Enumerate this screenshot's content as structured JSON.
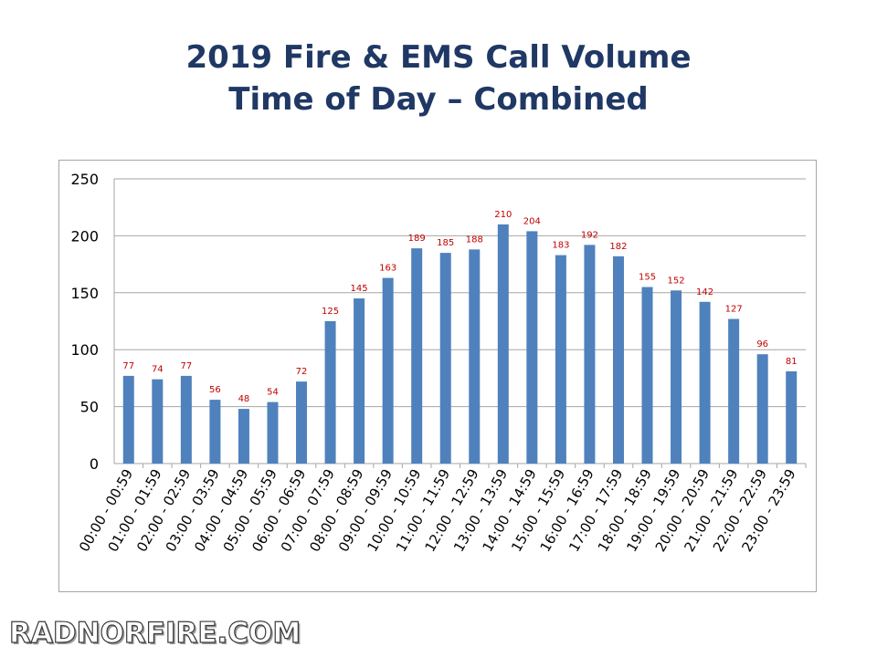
{
  "slide": {
    "title_line1": "2019 Fire & EMS Call Volume",
    "title_line2": "Time of Day – Combined",
    "watermark": "RADNORFIRE.COM"
  },
  "colors": {
    "title": "#1f3864",
    "bar": "#4f81bd",
    "data_label": "#c00000",
    "grid": "#a6a6a6",
    "axis_text": "#000000"
  },
  "chart_data": {
    "type": "bar",
    "title": "",
    "xlabel": "",
    "ylabel": "",
    "ylim": [
      0,
      250
    ],
    "yticks": [
      0,
      50,
      100,
      150,
      200,
      250
    ],
    "grid": true,
    "legend": "none",
    "categories": [
      "00:00 - 00:59",
      "01:00 - 01:59",
      "02:00 - 02:59",
      "03:00 - 03:59",
      "04:00 - 04:59",
      "05:00 - 05:59",
      "06:00 - 06:59",
      "07:00 - 07:59",
      "08:00 - 08:59",
      "09:00 - 09:59",
      "10:00 - 10:59",
      "11:00 - 11:59",
      "12:00 - 12:59",
      "13:00 - 13:59",
      "14:00 - 14:59",
      "15:00 - 15:59",
      "16:00 - 16:59",
      "17:00 - 17:59",
      "18:00 - 18:59",
      "19:00 - 19:59",
      "20:00 - 20:59",
      "21:00 - 21:59",
      "22:00 - 22:59",
      "23:00 - 23:59"
    ],
    "values": [
      77,
      74,
      77,
      56,
      48,
      54,
      72,
      125,
      145,
      163,
      189,
      185,
      188,
      210,
      204,
      183,
      192,
      182,
      155,
      152,
      142,
      127,
      96,
      81
    ]
  }
}
